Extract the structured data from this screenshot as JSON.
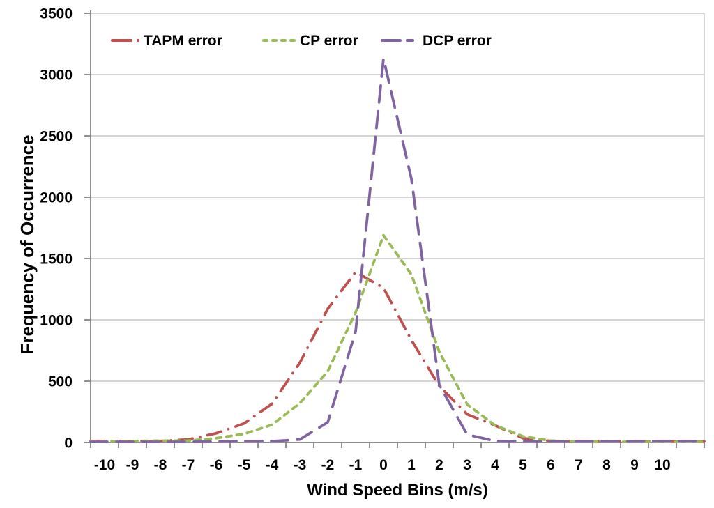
{
  "chart_data": {
    "type": "line",
    "title": "",
    "xlabel": "Wind Speed Bins (m/s)",
    "ylabel": "Frequency of Occurrence",
    "ylim": [
      0,
      3500
    ],
    "ytick_step": 500,
    "y_tick_labels": [
      "0",
      "500",
      "1000",
      "1500",
      "2000",
      "2500",
      "3000",
      "3500"
    ],
    "grid": "horizontal-only",
    "legend_position": "top-inside-no-border",
    "categories": [
      -10,
      -9,
      -8,
      -7,
      -6,
      -5,
      -4,
      -3,
      -2,
      -1,
      0,
      1,
      2,
      3,
      4,
      5,
      6,
      7,
      8,
      9,
      10
    ],
    "series": [
      {
        "name": "TAPM error",
        "color": "#C0504D",
        "line_style": "dash-dot",
        "values": [
          12,
          10,
          12,
          25,
          75,
          155,
          315,
          650,
          1090,
          1390,
          1260,
          835,
          460,
          230,
          140,
          35,
          12,
          10,
          8,
          8,
          8
        ]
      },
      {
        "name": "CP error",
        "color": "#9BBB59",
        "line_style": "short-dash",
        "values": [
          8,
          12,
          15,
          15,
          35,
          70,
          145,
          320,
          580,
          1060,
          1690,
          1370,
          740,
          310,
          140,
          50,
          15,
          8,
          5,
          5,
          5
        ]
      },
      {
        "name": "DCP error",
        "color": "#8064A2",
        "line_style": "long-dash",
        "values": [
          5,
          5,
          5,
          5,
          6,
          10,
          10,
          25,
          165,
          905,
          3130,
          2150,
          470,
          65,
          12,
          8,
          8,
          8,
          8,
          8,
          10
        ]
      }
    ],
    "style": {
      "gridline_color": "#C6C6C6",
      "axis_color": "#7F7F7F",
      "text_color": "#000000",
      "background": "#FFFFFF"
    }
  }
}
